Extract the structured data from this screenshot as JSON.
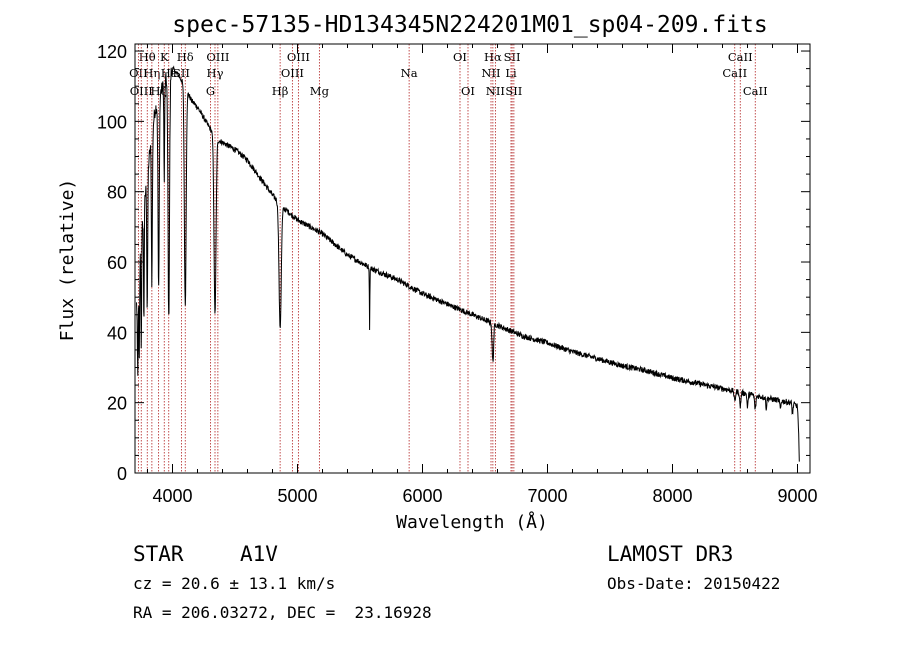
{
  "chart_data": {
    "type": "line",
    "title": "spec-57135-HD134345N224201M01_sp04-209.fits",
    "xlabel": "Wavelength (Å)",
    "ylabel": "Flux (relative)",
    "xlim": [
      3700,
      9100
    ],
    "ylim": [
      0,
      122
    ],
    "xticks": [
      4000,
      5000,
      6000,
      7000,
      8000,
      9000
    ],
    "yticks": [
      0,
      20,
      40,
      60,
      80,
      100,
      120
    ],
    "xtick_labels": [
      "4000",
      "5000",
      "6000",
      "7000",
      "8000",
      "9000"
    ],
    "ytick_labels": [
      "0",
      "20",
      "40",
      "60",
      "80",
      "100",
      "120"
    ],
    "line_color": "#000000",
    "marker_color": "#b22222",
    "continuum": [
      [
        3715,
        48
      ],
      [
        3740,
        62
      ],
      [
        3770,
        75
      ],
      [
        3800,
        85
      ],
      [
        3830,
        95
      ],
      [
        3860,
        103
      ],
      [
        3900,
        108
      ],
      [
        3950,
        112
      ],
      [
        4000,
        115
      ],
      [
        4050,
        113
      ],
      [
        4100,
        110
      ],
      [
        4150,
        106
      ],
      [
        4200,
        104
      ],
      [
        4250,
        101
      ],
      [
        4300,
        98
      ],
      [
        4350,
        95
      ],
      [
        4400,
        94
      ],
      [
        4500,
        92
      ],
      [
        4600,
        89
      ],
      [
        4700,
        84
      ],
      [
        4800,
        79
      ],
      [
        4900,
        75
      ],
      [
        5000,
        72
      ],
      [
        5200,
        68
      ],
      [
        5400,
        62
      ],
      [
        5600,
        58
      ],
      [
        5800,
        55
      ],
      [
        6000,
        51
      ],
      [
        6200,
        48
      ],
      [
        6400,
        45
      ],
      [
        6600,
        42
      ],
      [
        6800,
        39
      ],
      [
        7000,
        37
      ],
      [
        7200,
        34.5
      ],
      [
        7400,
        32.5
      ],
      [
        7600,
        30.5
      ],
      [
        7800,
        29
      ],
      [
        8000,
        27
      ],
      [
        8200,
        25.5
      ],
      [
        8400,
        24
      ],
      [
        8600,
        22.5
      ],
      [
        8800,
        21
      ],
      [
        8950,
        20
      ],
      [
        9000,
        19
      ],
      [
        9010,
        10
      ],
      [
        9015,
        2
      ]
    ],
    "absorption_features": [
      {
        "center": 3722,
        "depth": 25,
        "width": 3
      },
      {
        "center": 3734,
        "depth": 28,
        "width": 3
      },
      {
        "center": 3750,
        "depth": 30,
        "width": 3
      },
      {
        "center": 3771,
        "depth": 32,
        "width": 3
      },
      {
        "center": 3798,
        "depth": 38,
        "width": 3.5
      },
      {
        "center": 3835,
        "depth": 42,
        "width": 4
      },
      {
        "center": 3889,
        "depth": 55,
        "width": 5
      },
      {
        "center": 3934,
        "depth": 28,
        "width": 3
      },
      {
        "center": 3970,
        "depth": 70,
        "width": 6
      },
      {
        "center": 4102,
        "depth": 62,
        "width": 7
      },
      {
        "center": 4340,
        "depth": 50,
        "width": 8
      },
      {
        "center": 4861,
        "depth": 35,
        "width": 9
      },
      {
        "center": 5577,
        "depth": 17,
        "width": 2
      },
      {
        "center": 6563,
        "depth": 11,
        "width": 6
      },
      {
        "center": 8498,
        "depth": 3,
        "width": 5
      },
      {
        "center": 8542,
        "depth": 4,
        "width": 5
      },
      {
        "center": 8600,
        "depth": 4,
        "width": 4
      },
      {
        "center": 8662,
        "depth": 4,
        "width": 5
      },
      {
        "center": 8750,
        "depth": 3,
        "width": 4
      },
      {
        "center": 8863,
        "depth": 2.5,
        "width": 4
      },
      {
        "center": 8960,
        "depth": 3,
        "width": 4
      }
    ],
    "line_markers": [
      {
        "label": "Hθ",
        "wavelength": 3798,
        "row": 1
      },
      {
        "label": "K",
        "wavelength": 3934,
        "row": 1
      },
      {
        "label": "Hδ",
        "wavelength": 4102,
        "row": 1
      },
      {
        "label": "OIII",
        "wavelength": 4363,
        "row": 1
      },
      {
        "label": "OIII",
        "wavelength": 5007,
        "row": 1
      },
      {
        "label": "OI",
        "wavelength": 6300,
        "row": 1
      },
      {
        "label": "Hα",
        "wavelength": 6563,
        "row": 1
      },
      {
        "label": "SII",
        "wavelength": 6717,
        "row": 1
      },
      {
        "label": "CaII",
        "wavelength": 8542,
        "row": 1
      },
      {
        "label": "OII",
        "wavelength": 3727,
        "row": 2
      },
      {
        "label": "Hη",
        "wavelength": 3835,
        "row": 2
      },
      {
        "label": "Hε",
        "wavelength": 3970,
        "row": 2
      },
      {
        "label": "SII",
        "wavelength": 4072,
        "row": 2
      },
      {
        "label": "Hγ",
        "wavelength": 4340,
        "row": 2
      },
      {
        "label": "OIII",
        "wavelength": 4959,
        "row": 2
      },
      {
        "label": "Na",
        "wavelength": 5893,
        "row": 2
      },
      {
        "label": "NII",
        "wavelength": 6548,
        "row": 2
      },
      {
        "label": "Li",
        "wavelength": 6708,
        "row": 2
      },
      {
        "label": "CaII",
        "wavelength": 8498,
        "row": 2
      },
      {
        "label": "OIII",
        "wavelength": 3750,
        "row": 3
      },
      {
        "label": "Hζ",
        "wavelength": 3889,
        "row": 3
      },
      {
        "label": "G",
        "wavelength": 4304,
        "row": 3
      },
      {
        "label": "Hβ",
        "wavelength": 4861,
        "row": 3
      },
      {
        "label": "Mg",
        "wavelength": 5175,
        "row": 3
      },
      {
        "label": "OI",
        "wavelength": 6364,
        "row": 3
      },
      {
        "label": "NII",
        "wavelength": 6583,
        "row": 3
      },
      {
        "label": "SII",
        "wavelength": 6731,
        "row": 3
      },
      {
        "label": "CaII",
        "wavelength": 8662,
        "row": 3
      }
    ]
  },
  "info": {
    "object_class": "STAR",
    "subclass": "A1V",
    "survey": "LAMOST DR3",
    "redshift": "cz = 20.6 ± 13.1 km/s",
    "obs_date": "Obs-Date: 20150422",
    "coords": "RA = 206.03272, DEC =  23.16928"
  }
}
